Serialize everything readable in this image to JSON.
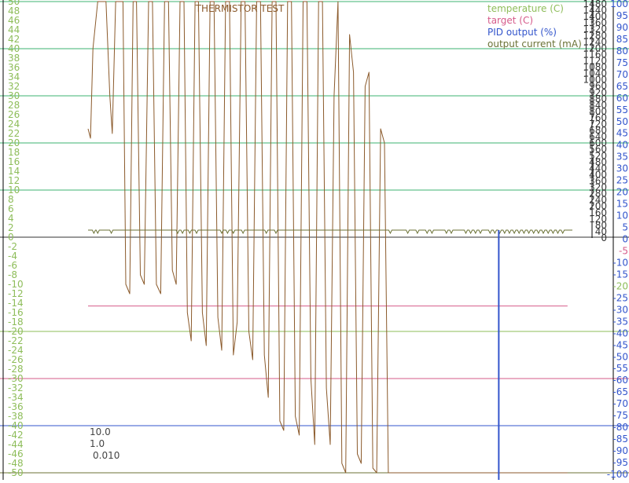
{
  "colors": {
    "temperature": "#8ebd5a",
    "target": "#d65b8a",
    "pid_output": "#3355cc",
    "output_current": "#6b7236",
    "trace": "#8b5a2b",
    "gridline": "#3cb371",
    "axis_current": "#333333",
    "axis_pid": "#3355cc",
    "title": "#8b5a2b",
    "info_text": "#444444"
  },
  "chart_data": {
    "type": "line",
    "title": "THERMISTOR TEST",
    "legend": {
      "placement": "top-right",
      "entries": [
        {
          "name": "temperature (C)",
          "color_key": "temperature"
        },
        {
          "name": "target (C)",
          "color_key": "target"
        },
        {
          "name": "PID output (%)",
          "color_key": "pid_output"
        },
        {
          "name": "output current (mA)",
          "color_key": "output_current"
        }
      ]
    },
    "axes": {
      "temperature": {
        "side": "left",
        "ylim": [
          -50,
          50
        ],
        "ticks": [
          50,
          48,
          46,
          44,
          42,
          40,
          38,
          36,
          34,
          32,
          30,
          28,
          26,
          24,
          22,
          20,
          18,
          16,
          14,
          12,
          10,
          8,
          6,
          4,
          2,
          0,
          -2,
          -4,
          -6,
          -8,
          -10,
          -12,
          -14,
          -16,
          -18,
          -20,
          -22,
          -24,
          -26,
          -28,
          -30,
          -32,
          -34,
          -36,
          -38,
          -40,
          -42,
          -44,
          -46,
          -48,
          -50
        ]
      },
      "current": {
        "side": "right",
        "ylim": [
          0,
          1480
        ],
        "ticks": [
          1480,
          1440,
          1400,
          1360,
          1320,
          1280,
          1240,
          1200,
          1160,
          1120,
          1080,
          1040,
          1000,
          960,
          920,
          880,
          840,
          800,
          760,
          720,
          680,
          640,
          600,
          560,
          520,
          480,
          440,
          400,
          360,
          320,
          280,
          240,
          200,
          160,
          120,
          80,
          40,
          0
        ]
      },
      "pid": {
        "side": "right",
        "ylim": [
          -100,
          100
        ],
        "ticks": [
          100,
          95,
          90,
          85,
          80,
          75,
          70,
          65,
          60,
          55,
          50,
          45,
          40,
          35,
          30,
          25,
          20,
          15,
          10,
          5,
          0,
          -5,
          -10,
          -15,
          -20,
          -25,
          -30,
          -35,
          -40,
          -45,
          -50,
          -55,
          -60,
          -65,
          -70,
          -75,
          -80,
          -85,
          -90,
          -95,
          -100
        ],
        "tick_colors": {
          "-5": "target",
          "-20": "temperature"
        }
      }
    },
    "grid_lines": [
      {
        "axis": "temperature",
        "value": 50,
        "color_key": "gridline"
      },
      {
        "axis": "temperature",
        "value": 40,
        "color_key": "gridline"
      },
      {
        "axis": "temperature",
        "value": 30,
        "color_key": "gridline"
      },
      {
        "axis": "temperature",
        "value": 20,
        "color_key": "gridline"
      },
      {
        "axis": "temperature",
        "value": 10,
        "color_key": "gridline"
      },
      {
        "axis": "temperature",
        "value": 0,
        "color_key": "axis_current"
      },
      {
        "axis": "temperature",
        "value": -20,
        "color_key": "temperature"
      },
      {
        "axis": "temperature",
        "value": -30,
        "color_key": "target"
      },
      {
        "axis": "temperature",
        "value": -40,
        "color_key": "pid_output"
      },
      {
        "axis": "temperature",
        "value": -50,
        "color_key": "output_current"
      }
    ],
    "target_line": {
      "axis": "temperature",
      "value": -14.6,
      "t_start": 0.0,
      "t_end": 0.99
    },
    "temperature_trace": {
      "axis": "temperature",
      "x_range": [
        0,
        1
      ],
      "x": [
        0.0,
        0.005,
        0.01,
        0.02,
        0.026,
        0.03,
        0.037,
        0.045,
        0.05,
        0.057,
        0.065,
        0.072,
        0.078,
        0.086,
        0.093,
        0.1,
        0.108,
        0.116,
        0.125,
        0.133,
        0.141,
        0.15,
        0.158,
        0.166,
        0.174,
        0.182,
        0.19,
        0.198,
        0.205,
        0.213,
        0.221,
        0.228,
        0.236,
        0.244,
        0.252,
        0.26,
        0.268,
        0.276,
        0.284,
        0.292,
        0.3,
        0.308,
        0.316,
        0.324,
        0.332,
        0.34,
        0.348,
        0.356,
        0.364,
        0.372,
        0.38,
        0.388,
        0.396,
        0.404,
        0.412,
        0.42,
        0.428,
        0.436,
        0.444,
        0.452,
        0.46,
        0.468,
        0.476,
        0.484,
        0.492,
        0.5,
        0.508,
        0.516,
        0.524,
        0.532,
        0.54,
        0.548,
        0.556,
        0.564,
        0.572,
        0.58,
        0.588,
        0.596,
        0.604,
        0.612,
        0.62,
        0.628,
        0.636,
        0.644,
        0.652,
        0.66,
        0.668,
        0.676,
        0.684,
        0.692,
        0.7,
        0.708,
        0.716,
        0.724,
        0.732,
        0.74,
        0.748,
        0.756,
        0.764,
        0.772,
        0.78,
        0.788,
        0.796,
        0.804,
        0.812,
        0.82,
        0.828,
        0.836,
        0.844,
        0.852,
        0.86,
        0.868,
        0.876,
        0.884,
        0.892,
        0.9,
        0.908,
        0.916,
        0.924,
        0.932,
        0.94,
        0.948,
        0.956,
        0.964,
        0.972,
        0.98,
        0.99
      ],
      "y": [
        23,
        21,
        40,
        50,
        50,
        50,
        50,
        30,
        22,
        50,
        50,
        50,
        -10,
        -12,
        50,
        50,
        -8,
        -10,
        50,
        50,
        -10,
        -12,
        50,
        50,
        -7,
        -10,
        50,
        50,
        -16,
        -22,
        50,
        50,
        -16,
        -23,
        50,
        50,
        -17,
        -24,
        50,
        50,
        -25,
        -18,
        50,
        50,
        -20,
        -26,
        50,
        50,
        -25,
        -34,
        50,
        50,
        -39,
        -41,
        50,
        50,
        -38,
        -42,
        50,
        50,
        -30,
        -44,
        50,
        50,
        -32,
        -44,
        30,
        50,
        -48,
        -50,
        43,
        35,
        -46,
        -48,
        32,
        35,
        -49,
        -50,
        23,
        20,
        -50,
        -50,
        -50,
        -50,
        -50,
        -50,
        -50,
        -50,
        -50,
        -50,
        -50,
        -50,
        -50,
        -50,
        -50,
        -50,
        -50,
        -50,
        -50,
        -50,
        -50,
        -50,
        -50,
        -50,
        -50,
        -50,
        -50,
        -50,
        -50,
        -50,
        -50,
        -50,
        -50,
        -50,
        -50,
        -50,
        -50,
        -50,
        -50,
        -50,
        -50,
        -50,
        -50,
        -50,
        -50,
        -50,
        -50
      ]
    },
    "current_trace": {
      "axis": "temperature",
      "baseline": 1.5,
      "dips_x": [
        0.012,
        0.02,
        0.048,
        0.185,
        0.195,
        0.21,
        0.224,
        0.276,
        0.288,
        0.3,
        0.32,
        0.368,
        0.388,
        0.624,
        0.66,
        0.68,
        0.7,
        0.71,
        0.74,
        0.75,
        0.78,
        0.79,
        0.8,
        0.81,
        0.83,
        0.84,
        0.85,
        0.86,
        0.87,
        0.88,
        0.89,
        0.9,
        0.91,
        0.92,
        0.93,
        0.94,
        0.95,
        0.96,
        0.97,
        0.98
      ],
      "drop_x": 0.848
    },
    "annotations": [
      "10.0",
      "1.0",
      "0.010"
    ]
  }
}
